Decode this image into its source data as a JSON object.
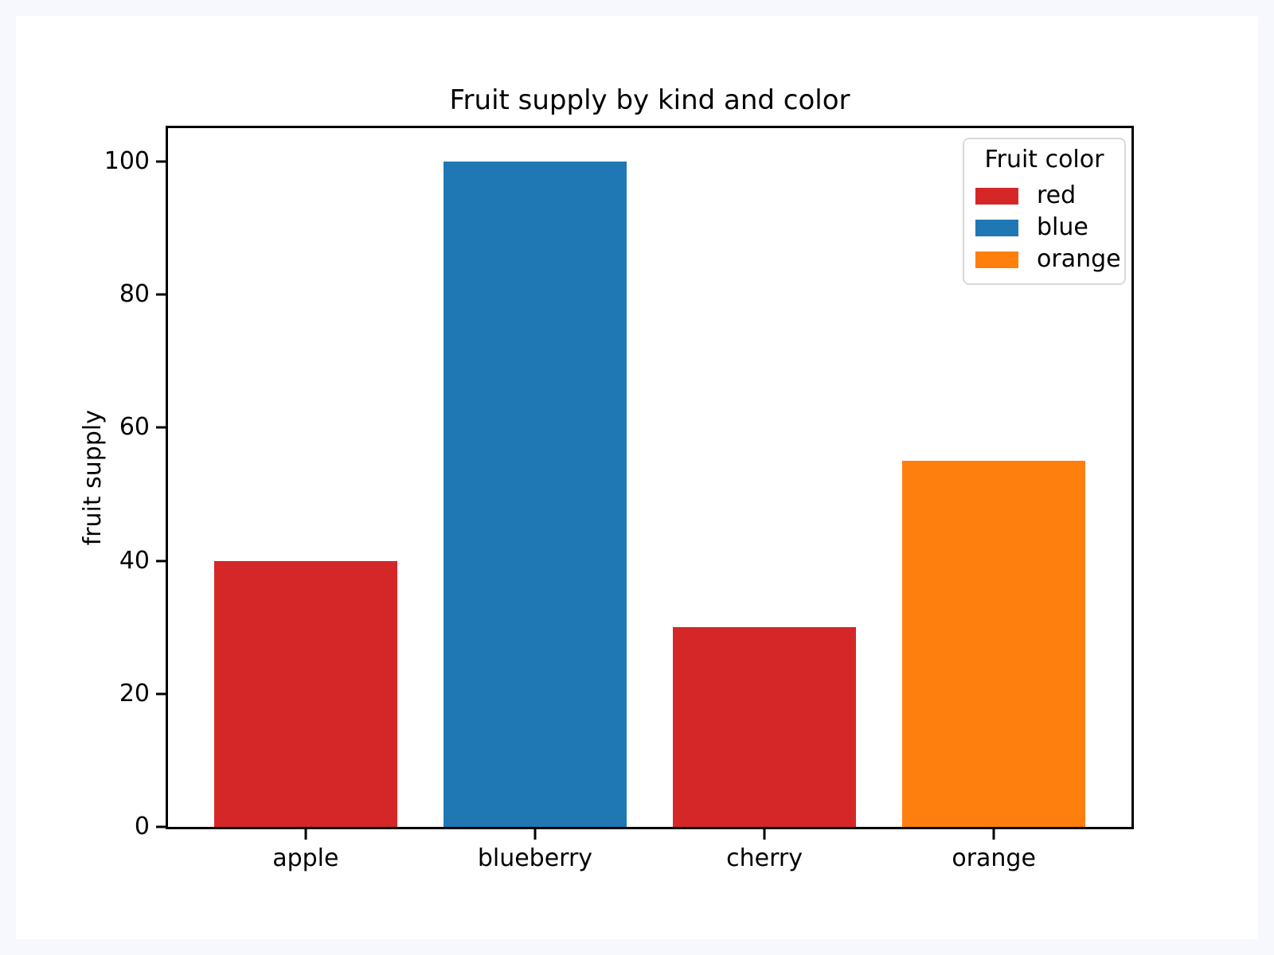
{
  "chart_data": {
    "type": "bar",
    "title": "Fruit supply by kind and color",
    "xlabel": "",
    "ylabel": "fruit supply",
    "categories": [
      "apple",
      "blueberry",
      "cherry",
      "orange"
    ],
    "values": [
      40,
      100,
      30,
      55
    ],
    "bar_colors": [
      "#d62728",
      "#1f77b4",
      "#d62728",
      "#ff7f0e"
    ],
    "bar_color_names": [
      "red",
      "blue",
      "red",
      "orange"
    ],
    "bar_width": 0.8,
    "xlim": [
      -0.6,
      3.6
    ],
    "ylim": [
      0,
      105
    ],
    "yticks": [
      0,
      20,
      40,
      60,
      80,
      100
    ],
    "grid": false,
    "legend": {
      "title": "Fruit color",
      "position": "upper right",
      "entries": [
        {
          "label": "red",
          "color": "#d62728"
        },
        {
          "label": "blue",
          "color": "#1f77b4"
        },
        {
          "label": "orange",
          "color": "#ff7f0e"
        }
      ]
    }
  },
  "colors": {
    "page_background": "#f7f8fd",
    "figure_background": "#ffffff",
    "spine": "#000000",
    "text": "#000000",
    "legend_border": "#d9d9d9"
  }
}
